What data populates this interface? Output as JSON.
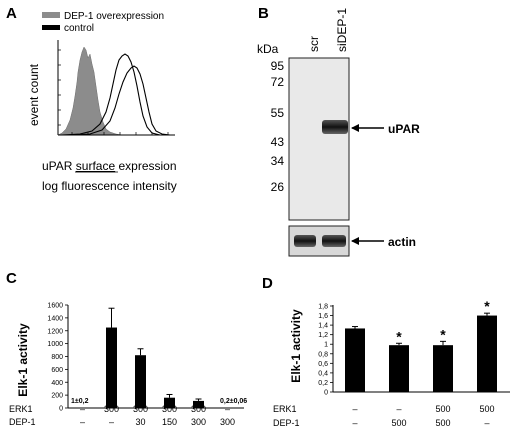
{
  "panels": {
    "A": {
      "letter": "A",
      "legend": [
        {
          "label": "DEP-1 overexpression",
          "color": "#8c8c8c"
        },
        {
          "label": "control",
          "color": "#000000"
        }
      ],
      "ylabel": "event count",
      "xlabel_line1_pre": "uPAR ",
      "xlabel_line1_underlined": "surface",
      "xlabel_line1_post": " expression",
      "xlabel_line2": "log fluorescence intensity"
    },
    "B": {
      "letter": "B",
      "lanes": [
        "scr",
        "siDEP-1"
      ],
      "kda_label": "kDa",
      "markers": [
        "95",
        "72",
        "55",
        "43",
        "34",
        "26"
      ],
      "band_labels": {
        "main": "uPAR",
        "loading": "actin"
      }
    },
    "C": {
      "letter": "C",
      "row_labels": [
        "ERK1",
        "DEP-1"
      ],
      "columns": [
        {
          "erk": "–",
          "dep": "–"
        },
        {
          "erk": "300",
          "dep": "–"
        },
        {
          "erk": "300",
          "dep": "30"
        },
        {
          "erk": "300",
          "dep": "150"
        },
        {
          "erk": "300",
          "dep": "300"
        },
        {
          "erk": "–",
          "dep": "300"
        }
      ],
      "value_labels": [
        "1±0,2",
        "0,2±0,06"
      ]
    },
    "D": {
      "letter": "D",
      "row_labels": [
        "ERK1",
        "DEP-1"
      ],
      "columns": [
        {
          "erk": "–",
          "dep": "–"
        },
        {
          "erk": "–",
          "dep": "500"
        },
        {
          "erk": "500",
          "dep": "500"
        },
        {
          "erk": "500",
          "dep": "–"
        }
      ],
      "sig_marker": "*"
    }
  },
  "chart_data": [
    {
      "type": "bar",
      "panel": "C",
      "ylabel": "Elk-1 activity",
      "ylim": [
        0,
        1600
      ],
      "yticks": [
        "0",
        "200",
        "400",
        "600",
        "800",
        "1000",
        "1200",
        "1400",
        "1600"
      ],
      "values": [
        1,
        1250,
        820,
        160,
        110,
        0.2
      ],
      "errors": [
        0.2,
        300,
        100,
        50,
        30,
        0.06
      ]
    },
    {
      "type": "bar",
      "panel": "D",
      "ylabel": "Elk-1 activity",
      "ylim": [
        0,
        1.8
      ],
      "yticks": [
        "0",
        "0,2",
        "0,4",
        "0,6",
        "0,8",
        "1",
        "1,2",
        "1,4",
        "1,6",
        "1,8"
      ],
      "values": [
        1.33,
        0.98,
        0.98,
        1.6
      ],
      "errors": [
        0.04,
        0.04,
        0.08,
        0.05
      ],
      "significant": [
        false,
        true,
        true,
        true
      ]
    }
  ]
}
